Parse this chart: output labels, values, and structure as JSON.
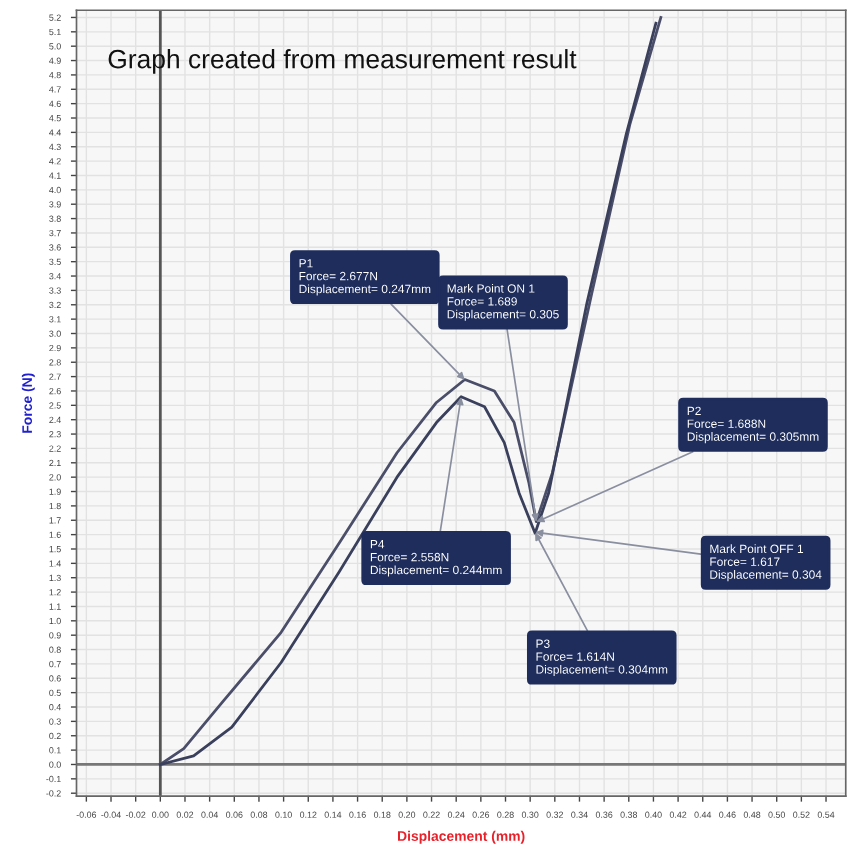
{
  "chart_data": {
    "type": "line",
    "title": "Graph created from measurement result",
    "xlabel": "Displacement (mm)",
    "ylabel": "Force (N)",
    "series": [
      {
        "color": "#4a4e69",
        "x": [
          0,
          0.019,
          0.05,
          0.098,
          0.145,
          0.192,
          0.224,
          0.247,
          0.271,
          0.287,
          0.299,
          0.305,
          0.318,
          0.35,
          0.381,
          0.406
        ],
        "values": [
          0,
          0.11,
          0.43,
          0.92,
          1.54,
          2.17,
          2.52,
          2.68,
          2.6,
          2.38,
          1.96,
          1.69,
          2.03,
          3.28,
          4.46,
          5.2
        ]
      },
      {
        "color": "#3a3f5c",
        "x": [
          0,
          0.027,
          0.058,
          0.098,
          0.145,
          0.192,
          0.224,
          0.244,
          0.263,
          0.279,
          0.291,
          0.304,
          0.315,
          0.346,
          0.378,
          0.402
        ],
        "values": [
          0,
          0.06,
          0.26,
          0.71,
          1.34,
          2.0,
          2.38,
          2.56,
          2.49,
          2.24,
          1.89,
          1.61,
          1.89,
          3.21,
          4.39,
          5.16
        ]
      }
    ],
    "annotations": [
      {
        "text": "P1\nForce= 2.677N\nDisplacement= 0.247mm",
        "x": 0.247,
        "y": 2.677
      },
      {
        "text": "Mark Point ON 1\nForce= 1.689\nDisplacement= 0.305",
        "x": 0.305,
        "y": 1.689
      },
      {
        "text": "P2\nForce= 1.688N\nDisplacement= 0.305mm",
        "x": 0.305,
        "y": 1.688
      },
      {
        "text": "Mark Point OFF 1\nForce= 1.617\nDisplacement= 0.304",
        "x": 0.304,
        "y": 1.617
      },
      {
        "text": "P3\nForce= 1.614N\nDisplacement= 0.304mm",
        "x": 0.304,
        "y": 1.614
      },
      {
        "text": "P4\nForce= 2.558N\nDisplacement= 0.244mm",
        "x": 0.244,
        "y": 2.558
      }
    ],
    "ref_lines": [
      {
        "axis": "x",
        "value": 0,
        "color": "#555555"
      },
      {
        "axis": "y",
        "value": 0,
        "color": "#777777"
      }
    ],
    "xlim": [
      -0.068,
      0.556
    ],
    "xticks": [
      -0.06,
      -0.04,
      -0.02,
      {
        "value": 0,
        "label": "0.00"
      },
      0.02,
      0.04,
      0.06,
      0.08,
      {
        "value": 0.1,
        "label": "0.10"
      },
      0.12,
      0.14,
      0.16,
      0.18,
      {
        "value": 0.2,
        "label": "0.20"
      },
      0.22,
      0.24,
      0.26,
      0.28,
      {
        "value": 0.3,
        "label": "0.30"
      },
      0.32,
      0.34,
      0.36,
      0.38,
      {
        "value": 0.4,
        "label": "0.40"
      },
      0.42,
      0.44,
      0.46,
      0.48,
      {
        "value": 0.5,
        "label": "0.50"
      },
      0.52,
      0.54
    ],
    "ylim": [
      -0.22,
      5.25
    ],
    "yticks": [
      -0.2,
      -0.1,
      {
        "value": 0,
        "label": "0.0"
      },
      0.1,
      0.2,
      0.3,
      0.4,
      0.5,
      0.6,
      0.7,
      0.8,
      0.9,
      {
        "value": 1,
        "label": "1.0"
      },
      1.1,
      1.2,
      1.3,
      1.4,
      1.5,
      1.6,
      1.7,
      1.8,
      1.9,
      {
        "value": 2,
        "label": "2.0"
      },
      2.1,
      2.2,
      2.3,
      2.4,
      2.5,
      2.6,
      2.7,
      2.8,
      2.9,
      {
        "value": 3,
        "label": "3.0"
      },
      3.1,
      3.2,
      3.3,
      3.4,
      3.5,
      3.6,
      3.7,
      3.8,
      3.9,
      {
        "value": 4,
        "label": "4.0"
      },
      4.1,
      4.2,
      4.3,
      4.4,
      4.5,
      4.6,
      4.7,
      4.8,
      4.9,
      {
        "value": 5,
        "label": "5.0"
      },
      5.1,
      5.2
    ],
    "grid": true,
    "marker": "none",
    "line_style": "solid"
  }
}
